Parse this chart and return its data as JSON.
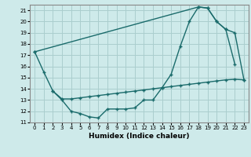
{
  "xlabel": "Humidex (Indice chaleur)",
  "xlim": [
    -0.5,
    23.5
  ],
  "ylim": [
    11,
    21.5
  ],
  "yticks": [
    11,
    12,
    13,
    14,
    15,
    16,
    17,
    18,
    19,
    20,
    21
  ],
  "xticks": [
    0,
    1,
    2,
    3,
    4,
    5,
    6,
    7,
    8,
    9,
    10,
    11,
    12,
    13,
    14,
    15,
    16,
    17,
    18,
    19,
    20,
    21,
    22,
    23
  ],
  "bg_color": "#ceeaea",
  "grid_color": "#aacece",
  "line_color": "#1a6b6b",
  "curve1_x": [
    0,
    1,
    2,
    3,
    4,
    5,
    6,
    7,
    8,
    9,
    10,
    11,
    12,
    13,
    14,
    15,
    16,
    17,
    18,
    19,
    20,
    21,
    22
  ],
  "curve1_y": [
    17.3,
    15.5,
    13.8,
    13.0,
    12.0,
    11.8,
    11.5,
    11.4,
    12.2,
    12.2,
    12.2,
    12.3,
    13.0,
    13.0,
    14.1,
    15.3,
    17.8,
    20.0,
    21.3,
    21.2,
    20.0,
    19.3,
    16.2
  ],
  "curve2_x": [
    0,
    18,
    19,
    20,
    21,
    22,
    23
  ],
  "curve2_y": [
    17.3,
    21.3,
    21.2,
    20.0,
    19.3,
    19.0,
    14.8
  ],
  "curve3_x": [
    2,
    3,
    4,
    5,
    6,
    7,
    8,
    9,
    10,
    11,
    12,
    13,
    14,
    15,
    16,
    17,
    18,
    19,
    20,
    21,
    22,
    23
  ],
  "curve3_y": [
    13.8,
    13.1,
    13.1,
    13.2,
    13.3,
    13.4,
    13.5,
    13.6,
    13.7,
    13.8,
    13.9,
    14.0,
    14.1,
    14.2,
    14.3,
    14.4,
    14.5,
    14.6,
    14.7,
    14.8,
    14.85,
    14.8
  ]
}
